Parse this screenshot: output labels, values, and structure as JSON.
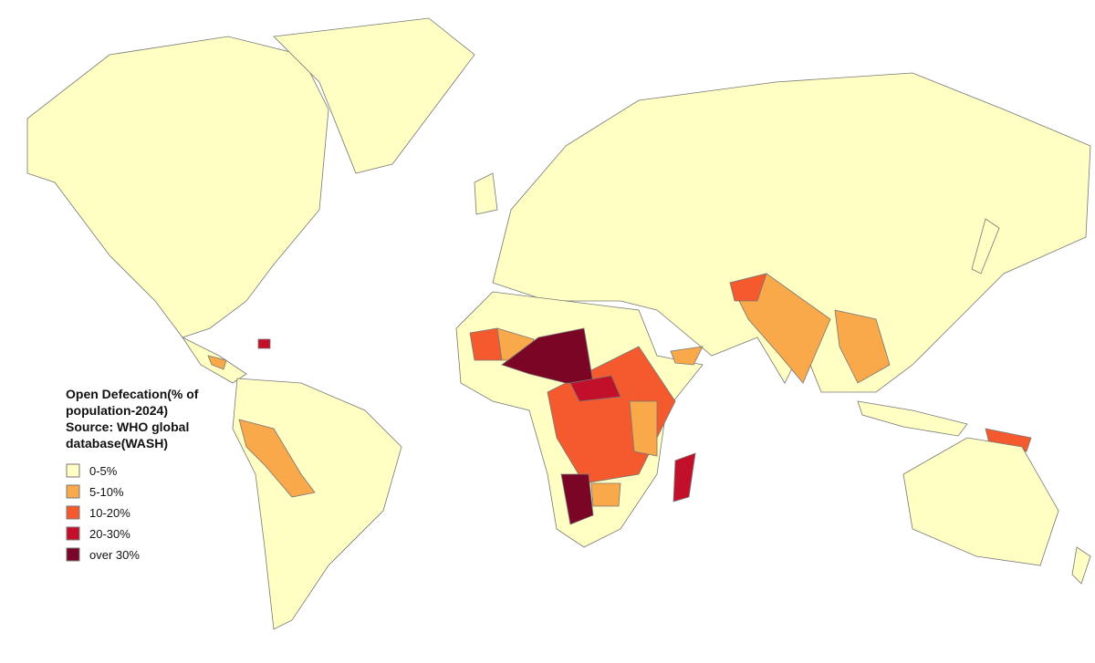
{
  "legend": {
    "title_lines": [
      "Open Defecation(% of",
      "population-2024)",
      "Source: WHO global",
      "database(WASH)"
    ],
    "items": [
      {
        "label": "0-5%",
        "color": "#ffffc4"
      },
      {
        "label": "5-10%",
        "color": "#f9a84a"
      },
      {
        "label": "10-20%",
        "color": "#f45a2e"
      },
      {
        "label": "20-30%",
        "color": "#c3102a"
      },
      {
        "label": "over 30%",
        "color": "#7a0524"
      }
    ]
  }
}
